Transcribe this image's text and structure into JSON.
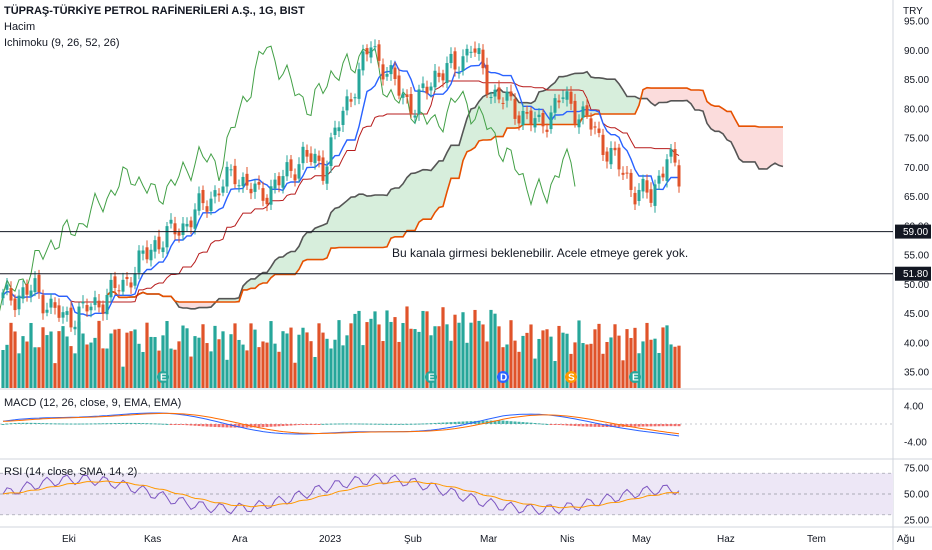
{
  "header": {
    "title": "TÜPRAŞ-TÜRKİYE PETROL RAFİNERİLERİ A.Ş., 1G, BIST",
    "volume_label": "Hacim",
    "ichimoku_label": "Ichimoku (9, 26, 52, 26)",
    "currency": "TRY"
  },
  "annotation": "Bu kanala girmesi beklenebilir. Acele etmeye gerek yok.",
  "colors": {
    "up": "#26a69a",
    "down": "#e0532a",
    "vol_up": "#26a69a",
    "vol_down": "#e0532a",
    "tenkan": "#2962ff",
    "kijun": "#b71c1c",
    "lagging": "#43a047",
    "spanA": "#9a9a9a",
    "spanB": "#e65100",
    "cloud_up": "#d7eedc",
    "cloud_down": "#fbdcdc",
    "macd": "#2962ff",
    "signal": "#ff6d00",
    "rsi": "#7e57c2",
    "rsi_ma": "#ff9800"
  },
  "chart_data": [
    {
      "type": "candlestick",
      "title": "TÜPRAŞ-TÜRKİYE PETROL RAFİNERİLERİ A.Ş., 1G, BIST",
      "y_axis_ticks": [
        "95.00",
        "90.00",
        "85.00",
        "80.00",
        "75.00",
        "70.00",
        "65.00",
        "60.00",
        "55.00",
        "50.00",
        "45.00",
        "40.00",
        "35.00"
      ],
      "ylim": [
        33,
        96
      ],
      "x_axis_ticks": [
        "Eki",
        "Kas",
        "Ara",
        "2023",
        "Şub",
        "Mar",
        "Nis",
        "May",
        "Haz",
        "Tem",
        "Ağu"
      ],
      "horizontal_levels": [
        {
          "label": "59.00",
          "value": 59.0
        },
        {
          "label": "51.80",
          "value": 51.8
        }
      ],
      "price_anchors": [
        {
          "i": 0,
          "close": 47.5
        },
        {
          "i": 8,
          "close": 49
        },
        {
          "i": 15,
          "close": 44
        },
        {
          "i": 22,
          "close": 46
        },
        {
          "i": 30,
          "close": 50
        },
        {
          "i": 38,
          "close": 57
        },
        {
          "i": 45,
          "close": 60
        },
        {
          "i": 52,
          "close": 65
        },
        {
          "i": 58,
          "close": 69
        },
        {
          "i": 64,
          "close": 65
        },
        {
          "i": 70,
          "close": 68
        },
        {
          "i": 75,
          "close": 72
        },
        {
          "i": 80,
          "close": 70
        },
        {
          "i": 86,
          "close": 81
        },
        {
          "i": 92,
          "close": 91
        },
        {
          "i": 97,
          "close": 85
        },
        {
          "i": 103,
          "close": 80
        },
        {
          "i": 108,
          "close": 86
        },
        {
          "i": 113,
          "close": 87
        },
        {
          "i": 117,
          "close": 91
        },
        {
          "i": 122,
          "close": 83
        },
        {
          "i": 128,
          "close": 80
        },
        {
          "i": 134,
          "close": 77
        },
        {
          "i": 140,
          "close": 82
        },
        {
          "i": 146,
          "close": 78
        },
        {
          "i": 152,
          "close": 72
        },
        {
          "i": 158,
          "close": 66
        },
        {
          "i": 162,
          "close": 65
        },
        {
          "i": 166,
          "close": 72
        },
        {
          "i": 169,
          "close": 68
        }
      ],
      "volume_badges": [
        "E",
        "E",
        "D",
        "S",
        "E"
      ]
    },
    {
      "type": "bar",
      "title": "Hacim",
      "note": "volume histogram in lower part of price pane"
    },
    {
      "type": "line",
      "title": "MACD (12, 26, close, 9, EMA, EMA)",
      "y_axis_ticks": [
        "4.00",
        "-4.00"
      ],
      "ylim": [
        -6,
        6
      ],
      "series": [
        {
          "name": "MACD"
        },
        {
          "name": "Signal"
        },
        {
          "name": "Histogram"
        }
      ]
    },
    {
      "type": "line",
      "title": "RSI (14, close, SMA, 14, 2)",
      "y_axis_ticks": [
        "75.00",
        "50.00",
        "25.00"
      ],
      "ylim": [
        20,
        80
      ],
      "band": [
        30,
        70
      ]
    }
  ]
}
